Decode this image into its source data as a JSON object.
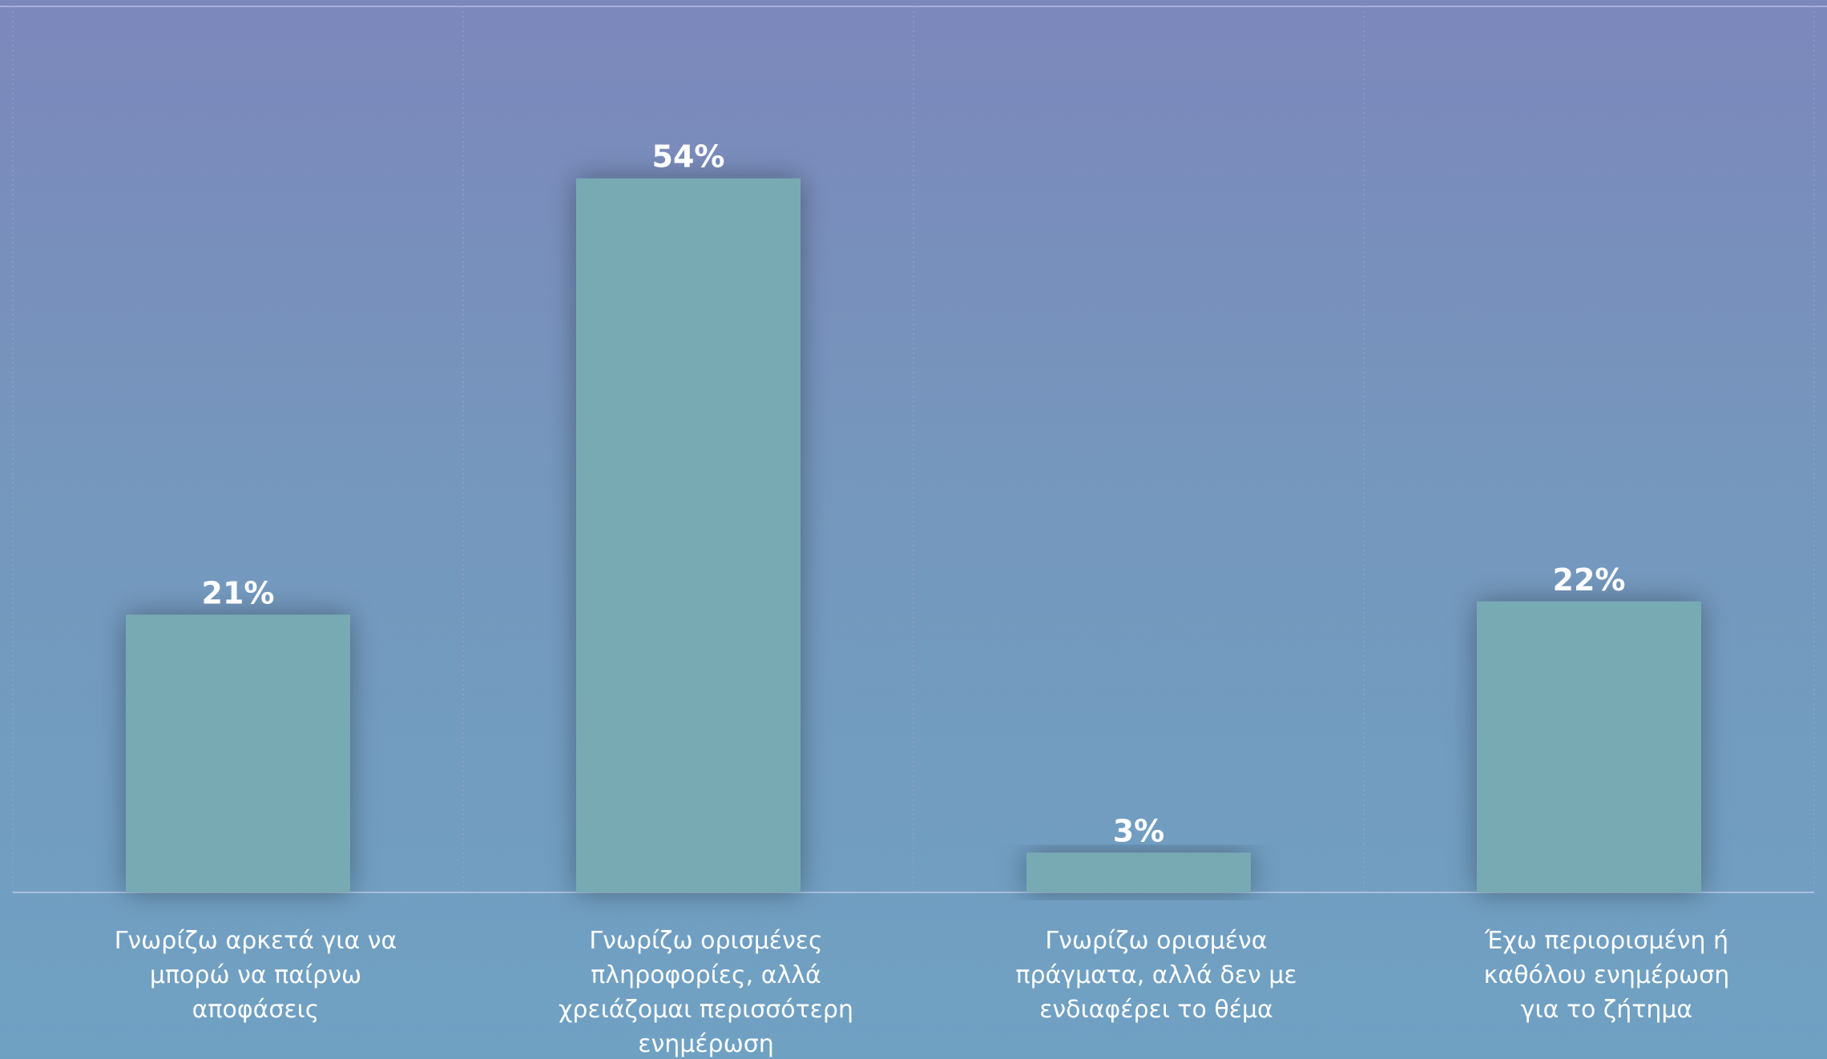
{
  "chart_data": {
    "type": "bar",
    "title": "",
    "xlabel": "",
    "ylabel": "",
    "ylim": [
      0,
      67
    ],
    "grid": "vertical dotted category separators",
    "legend": "none",
    "categories": [
      "Γνωρίζω αρκετά για να μπορώ να παίρνω αποφάσεις",
      "Γνωρίζω ορισμένες πληροφορίες, αλλά χρειάζομαι περισσότερη ενημέρωση",
      "Γνωρίζω ορισμένα πράγματα, αλλά δεν με ενδιαφέρει το θέμα",
      "Έχω περιορισμένη ή καθόλου ενημέρωση για το ζήτημα"
    ],
    "category_lines": [
      [
        "Γνωρίζω αρκετά για να",
        "μπορώ να παίρνω",
        "αποφάσεις"
      ],
      [
        "Γνωρίζω ορισμένες",
        "πληροφορίες, αλλά",
        "χρειάζομαι περισσότερη",
        "ενημέρωση"
      ],
      [
        "Γνωρίζω ορισμένα",
        "πράγματα, αλλά δεν με",
        "ενδιαφέρει το θέμα"
      ],
      [
        "Έχω περιορισμένη ή",
        "καθόλου ενημέρωση",
        "για το ζήτημα"
      ]
    ],
    "values": [
      21,
      54,
      3,
      22
    ],
    "data_labels": [
      "21%",
      "54%",
      "3%",
      "22%"
    ],
    "colors": {
      "bar": "#78aab4",
      "text": "#ffffff",
      "baseline": "#a8c0dd",
      "grid": "#9aa8d2",
      "top_rule": "#a5b1da"
    }
  }
}
